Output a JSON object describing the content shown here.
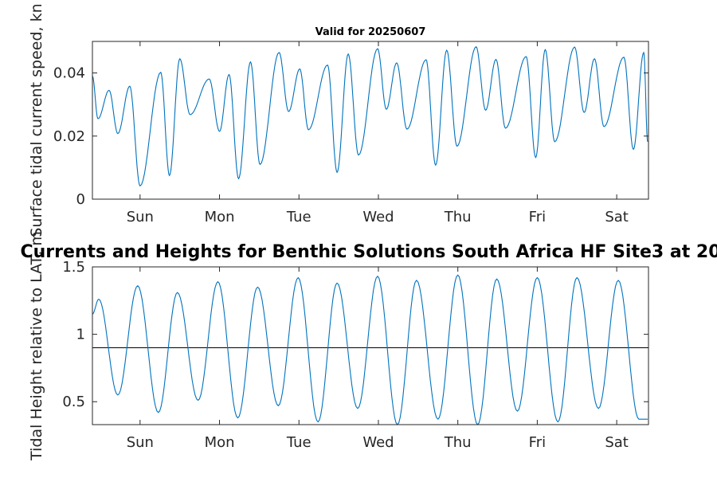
{
  "window_title": "Valid for 20250607",
  "figure_title": "Currents and Heights for Benthic Solutions South Africa HF Site3 at 20",
  "colors": {
    "series": "#0072BD",
    "axes": "#262626",
    "reference": "#000000"
  },
  "chart_data": [
    {
      "type": "line",
      "title": "Valid for 20250607",
      "xlabel": "",
      "ylabel": "Surface tidal current speed, kn",
      "x_ticks": [
        "Sun",
        "Mon",
        "Tue",
        "Wed",
        "Thu",
        "Fri",
        "Sat"
      ],
      "xlim": [
        0,
        7
      ],
      "ylim": [
        0,
        0.05
      ],
      "y_ticks": [
        "0",
        "0.02",
        "0.04"
      ],
      "grid": false,
      "series": [
        {
          "x": [
            0.0,
            0.07,
            0.21,
            0.32,
            0.47,
            0.6,
            0.86,
            0.97,
            1.1,
            1.23,
            1.47,
            1.6,
            1.72,
            1.84,
            1.99,
            2.11,
            2.35,
            2.47,
            2.61,
            2.72,
            2.96,
            3.08,
            3.22,
            3.35,
            3.59,
            3.7,
            3.83,
            3.96,
            4.2,
            4.32,
            4.46,
            4.59,
            4.83,
            4.95,
            5.08,
            5.2,
            5.46,
            5.58,
            5.7,
            5.82,
            6.07,
            6.19,
            6.32,
            6.44,
            6.69,
            6.81,
            6.94,
            6.99
          ],
          "y": [
            0.039,
            0.0255,
            0.0345,
            0.0208,
            0.0358,
            0.0042,
            0.0402,
            0.0075,
            0.0445,
            0.0268,
            0.0381,
            0.0215,
            0.0395,
            0.0065,
            0.0435,
            0.011,
            0.0465,
            0.0278,
            0.0413,
            0.022,
            0.0425,
            0.0085,
            0.046,
            0.014,
            0.0477,
            0.0285,
            0.0432,
            0.0222,
            0.0442,
            0.0108,
            0.0472,
            0.0168,
            0.0483,
            0.0282,
            0.0443,
            0.0225,
            0.0452,
            0.0132,
            0.0474,
            0.0182,
            0.0482,
            0.0275,
            0.0445,
            0.023,
            0.045,
            0.0158,
            0.0465,
            0.0182
          ]
        }
      ]
    },
    {
      "type": "line",
      "title": "",
      "xlabel": "",
      "ylabel": "Tidal Height relative to LAT, m",
      "x_ticks": [
        "Sun",
        "Mon",
        "Tue",
        "Wed",
        "Thu",
        "Fri",
        "Sat"
      ],
      "xlim": [
        0,
        7
      ],
      "ylim": [
        0.33,
        1.5
      ],
      "y_ticks": [
        "0.5",
        "1",
        "1.5"
      ],
      "grid": false,
      "reference_line": 0.9,
      "series": [
        {
          "x": [
            0.0,
            0.08,
            0.32,
            0.57,
            0.83,
            1.07,
            1.33,
            1.58,
            1.83,
            2.08,
            2.34,
            2.59,
            2.84,
            3.08,
            3.34,
            3.59,
            3.84,
            4.08,
            4.35,
            4.6,
            4.85,
            5.09,
            5.35,
            5.6,
            5.86,
            6.1,
            6.37,
            6.62,
            6.88,
            6.99
          ],
          "y": [
            1.15,
            1.26,
            0.55,
            1.36,
            0.42,
            1.31,
            0.51,
            1.39,
            0.38,
            1.35,
            0.47,
            1.42,
            0.35,
            1.38,
            0.45,
            1.43,
            0.33,
            1.4,
            0.37,
            1.44,
            0.33,
            1.41,
            0.43,
            1.42,
            0.35,
            1.42,
            0.45,
            1.4,
            0.37,
            0.37
          ]
        }
      ]
    }
  ]
}
